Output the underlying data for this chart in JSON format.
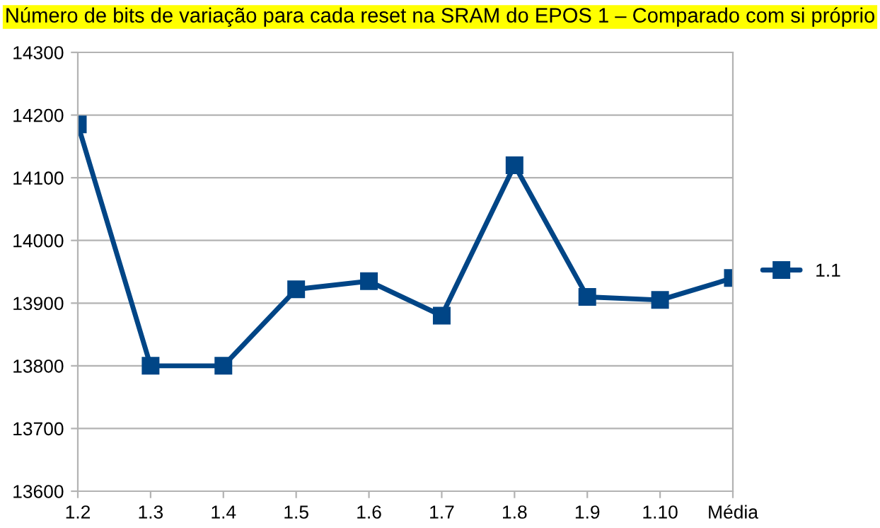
{
  "chart_data": {
    "type": "line",
    "title": "Número de bits de variação para cada reset na SRAM do EPOS 1 – Comparado com si próprio",
    "categories": [
      "1.2",
      "1.3",
      "1.4",
      "1.5",
      "1.6",
      "1.7",
      "1.8",
      "1.9",
      "1.10",
      "Média"
    ],
    "series": [
      {
        "name": "1.1",
        "color": "#004586",
        "values": [
          14185,
          13800,
          13800,
          13922,
          13935,
          13880,
          14120,
          13910,
          13905,
          13940
        ]
      }
    ],
    "ylim": [
      13600,
      14300
    ],
    "yticks": [
      13600,
      13700,
      13800,
      13900,
      14000,
      14100,
      14200,
      14300
    ],
    "grid": "y",
    "legend": "right",
    "marker": "square",
    "line_style": "solid"
  }
}
